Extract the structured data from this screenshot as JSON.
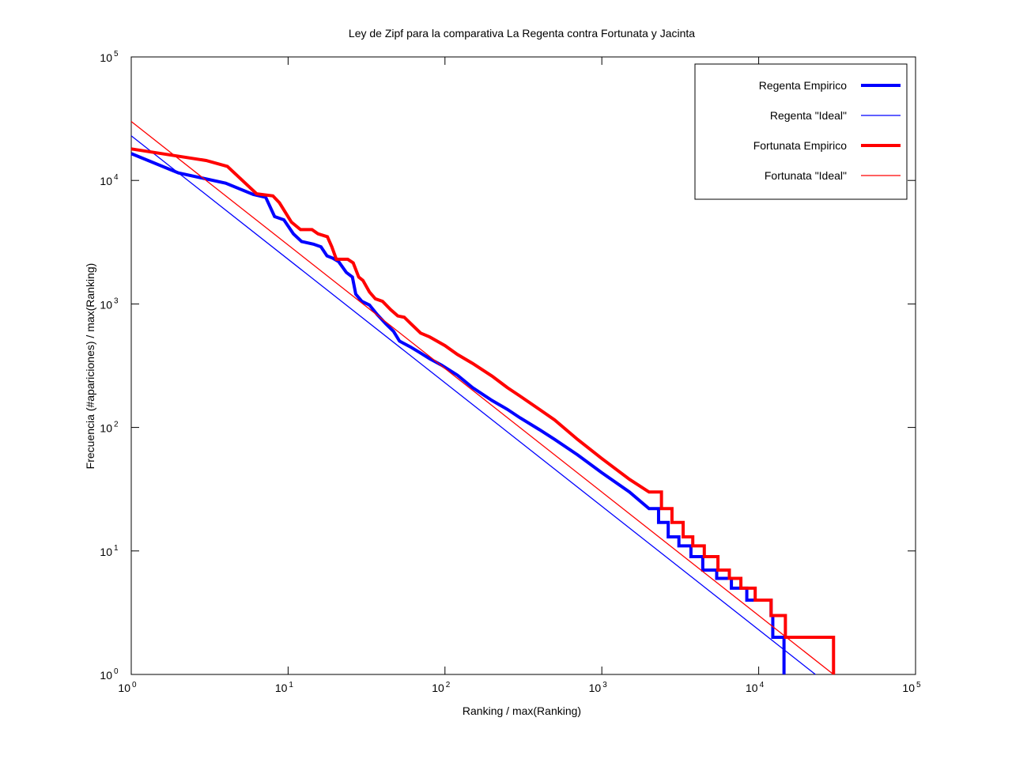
{
  "chart_data": {
    "type": "line",
    "title": "Ley de Zipf para la comparativa La Regenta contra Fortunata y Jacinta",
    "xlabel": "Ranking / max(Ranking)",
    "ylabel": "Frecuencia (#apariciones) / max(Ranking)",
    "xscale": "log",
    "yscale": "log",
    "xlim": [
      1,
      100000
    ],
    "ylim": [
      1,
      100000
    ],
    "grid": false,
    "legend_position": "top-right",
    "x_ticks": [
      {
        "base": "10",
        "exp": "0",
        "value": 1
      },
      {
        "base": "10",
        "exp": "1",
        "value": 10
      },
      {
        "base": "10",
        "exp": "2",
        "value": 100
      },
      {
        "base": "10",
        "exp": "3",
        "value": 1000
      },
      {
        "base": "10",
        "exp": "4",
        "value": 10000
      },
      {
        "base": "10",
        "exp": "5",
        "value": 100000
      }
    ],
    "y_ticks": [
      {
        "base": "10",
        "exp": "0",
        "value": 1
      },
      {
        "base": "10",
        "exp": "1",
        "value": 10
      },
      {
        "base": "10",
        "exp": "2",
        "value": 100
      },
      {
        "base": "10",
        "exp": "3",
        "value": 1000
      },
      {
        "base": "10",
        "exp": "4",
        "value": 10000
      },
      {
        "base": "10",
        "exp": "5",
        "value": 100000
      }
    ],
    "series": [
      {
        "name": "Regenta Empirico",
        "color": "#0000ff",
        "style": "thick",
        "step_tail": true,
        "points": [
          [
            1,
            16500
          ],
          [
            2,
            11500
          ],
          [
            4,
            9500
          ],
          [
            6,
            7700
          ],
          [
            7.2,
            7300
          ],
          [
            8.2,
            5100
          ],
          [
            9.4,
            4800
          ],
          [
            10.8,
            3700
          ],
          [
            12.2,
            3200
          ],
          [
            14.5,
            3050
          ],
          [
            16.2,
            2900
          ],
          [
            17.7,
            2450
          ],
          [
            19.2,
            2350
          ],
          [
            21,
            2200
          ],
          [
            23.5,
            1800
          ],
          [
            25.7,
            1650
          ],
          [
            27,
            1200
          ],
          [
            29.5,
            1050
          ],
          [
            33,
            980
          ],
          [
            37,
            820
          ],
          [
            42,
            690
          ],
          [
            47,
            600
          ],
          [
            51.3,
            500
          ],
          [
            60,
            450
          ],
          [
            70,
            400
          ],
          [
            80,
            360
          ],
          [
            95,
            320
          ],
          [
            120,
            265
          ],
          [
            150,
            210
          ],
          [
            200,
            165
          ],
          [
            250,
            140
          ],
          [
            300,
            120
          ],
          [
            400,
            96
          ],
          [
            500,
            80
          ],
          [
            700,
            60
          ],
          [
            1000,
            43
          ],
          [
            1500,
            30
          ],
          [
            2000,
            22
          ]
        ],
        "steps": [
          [
            2000,
            22
          ],
          [
            2300,
            17
          ],
          [
            2650,
            13
          ],
          [
            3100,
            11
          ],
          [
            3700,
            9
          ],
          [
            4400,
            7
          ],
          [
            5400,
            6
          ],
          [
            6700,
            5
          ],
          [
            8400,
            4
          ],
          [
            12000,
            3
          ],
          [
            12300,
            2
          ],
          [
            14500,
            1
          ]
        ]
      },
      {
        "name": "Regenta \"Ideal\"",
        "color": "#0000ff",
        "style": "thin",
        "points": [
          [
            1,
            23000
          ],
          [
            23000,
            1
          ]
        ]
      },
      {
        "name": "Fortunata Empirico",
        "color": "#ff0000",
        "style": "thick",
        "step_tail": true,
        "points": [
          [
            1,
            18000
          ],
          [
            3,
            14500
          ],
          [
            4.1,
            13000
          ],
          [
            6.3,
            7800
          ],
          [
            8,
            7500
          ],
          [
            8.8,
            6600
          ],
          [
            10.5,
            4600
          ],
          [
            12,
            4000
          ],
          [
            14.2,
            4000
          ],
          [
            15.5,
            3700
          ],
          [
            17.8,
            3500
          ],
          [
            19,
            2900
          ],
          [
            20.3,
            2300
          ],
          [
            24,
            2300
          ],
          [
            26,
            2150
          ],
          [
            28.2,
            1650
          ],
          [
            30,
            1550
          ],
          [
            33,
            1250
          ],
          [
            36,
            1100
          ],
          [
            40,
            1050
          ],
          [
            45,
            900
          ],
          [
            50,
            800
          ],
          [
            55,
            780
          ],
          [
            60,
            700
          ],
          [
            70,
            580
          ],
          [
            80,
            540
          ],
          [
            100,
            460
          ],
          [
            120,
            390
          ],
          [
            150,
            330
          ],
          [
            200,
            260
          ],
          [
            250,
            210
          ],
          [
            300,
            180
          ],
          [
            400,
            140
          ],
          [
            500,
            115
          ],
          [
            700,
            80
          ],
          [
            1000,
            56
          ],
          [
            1500,
            38
          ],
          [
            2000,
            30
          ]
        ],
        "steps": [
          [
            2000,
            30
          ],
          [
            2400,
            22
          ],
          [
            2800,
            17
          ],
          [
            3300,
            13
          ],
          [
            3800,
            11
          ],
          [
            4500,
            9
          ],
          [
            5500,
            7
          ],
          [
            6500,
            6
          ],
          [
            7700,
            5
          ],
          [
            9500,
            4
          ],
          [
            12000,
            3
          ],
          [
            14800,
            2
          ],
          [
            30000,
            1
          ]
        ]
      },
      {
        "name": "Fortunata \"Ideal\"",
        "color": "#ff0000",
        "style": "thin",
        "points": [
          [
            1,
            30000
          ],
          [
            30000,
            1
          ]
        ]
      }
    ]
  }
}
